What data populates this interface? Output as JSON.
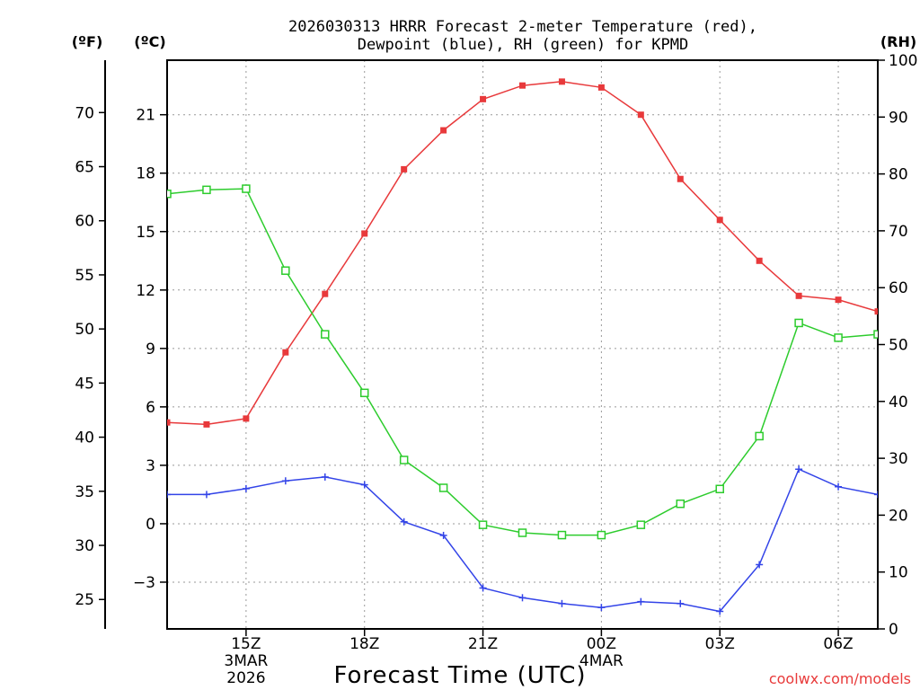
{
  "chart_data": {
    "type": "line",
    "title_line1": "2026030313 HRRR Forecast 2-meter Temperature (red),",
    "title_line2": "Dewpoint (blue), RH (green) for KPMD",
    "xlabel": "Forecast Time (UTC)",
    "credit": "coolwx.com/models",
    "units": {
      "fahrenheit": "(ºF)",
      "celsius": "(ºC)",
      "rh": "(RH)"
    },
    "x_range": [
      13,
      31
    ],
    "x_ticks": [
      {
        "x": 15,
        "label": "15Z",
        "sub1": "3MAR",
        "sub2": "2026"
      },
      {
        "x": 18,
        "label": "18Z",
        "sub1": "",
        "sub2": ""
      },
      {
        "x": 21,
        "label": "21Z",
        "sub1": "",
        "sub2": ""
      },
      {
        "x": 24,
        "label": "00Z",
        "sub1": "4MAR",
        "sub2": ""
      },
      {
        "x": 27,
        "label": "03Z",
        "sub1": "",
        "sub2": ""
      },
      {
        "x": 30,
        "label": "06Z",
        "sub1": "",
        "sub2": ""
      }
    ],
    "celsius_range": [
      -5.4,
      23.8
    ],
    "celsius_ticks": [
      "-3",
      "0",
      "3",
      "6",
      "9",
      "12",
      "15",
      "18",
      "21"
    ],
    "fahrenheit_ticks": [
      "25",
      "30",
      "35",
      "40",
      "45",
      "50",
      "55",
      "60",
      "65",
      "70"
    ],
    "rh_range": [
      0,
      100
    ],
    "rh_ticks": [
      "0",
      "10",
      "20",
      "30",
      "40",
      "50",
      "60",
      "70",
      "80",
      "90",
      "100"
    ],
    "x": [
      13,
      14,
      15,
      16,
      17,
      18,
      19,
      20,
      21,
      22,
      23,
      24,
      25,
      26,
      27,
      28,
      29,
      30,
      31
    ],
    "series": [
      {
        "name": "Temperature",
        "axis": "celsius",
        "color": "#e8393b",
        "marker": "filled-square",
        "values": [
          5.2,
          5.1,
          5.4,
          8.8,
          11.8,
          14.9,
          18.2,
          20.2,
          21.8,
          22.5,
          22.7,
          22.4,
          21.0,
          17.7,
          15.6,
          13.5,
          11.7,
          11.5,
          10.9
        ]
      },
      {
        "name": "Dewpoint",
        "axis": "celsius",
        "color": "#3344e8",
        "marker": "plus",
        "values": [
          1.5,
          1.5,
          1.8,
          2.2,
          2.4,
          2.0,
          0.1,
          -0.6,
          -3.3,
          -3.8,
          -4.1,
          -4.3,
          -4.0,
          -4.1,
          -4.5,
          -2.1,
          2.8,
          1.9,
          1.5
        ]
      },
      {
        "name": "RH",
        "axis": "rh",
        "color": "#2dcc2d",
        "marker": "open-square",
        "values": [
          76.5,
          77.2,
          77.4,
          63.0,
          51.8,
          41.5,
          29.7,
          24.8,
          18.3,
          16.9,
          16.5,
          16.5,
          18.3,
          22.0,
          24.6,
          33.9,
          53.8,
          51.2,
          51.8
        ]
      }
    ]
  }
}
